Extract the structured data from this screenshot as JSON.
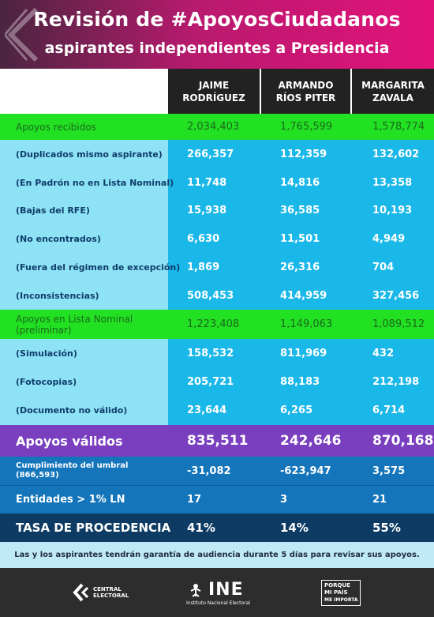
{
  "header": {
    "title": "Revisión de #ApoyosCiudadanos",
    "subtitle": "aspirantes independientes a Presidencia"
  },
  "columns": [
    {
      "line1": "JAIME",
      "line2": "RODRÍGUEZ"
    },
    {
      "line1": "ARMANDO",
      "line2": "RÍOS PITER"
    },
    {
      "line1": "MARGARITA",
      "line2": "ZAVALA"
    }
  ],
  "rows": [
    {
      "label": "Apoyos recibidos",
      "values": [
        "2,034,403",
        "1,765,599",
        "1,578,774"
      ]
    },
    {
      "label": "(Duplicados mismo aspirante)",
      "values": [
        "266,357",
        "112,359",
        "132,602"
      ]
    },
    {
      "label": "(En Padrón no en Lista Nominal)",
      "values": [
        "11,748",
        "14,816",
        "13,358"
      ]
    },
    {
      "label": "(Bajas del RFE)",
      "values": [
        "15,938",
        "36,585",
        "10,193"
      ]
    },
    {
      "label": "(No encontrados)",
      "values": [
        "6,630",
        "11,501",
        "4,949"
      ]
    },
    {
      "label": "(Fuera del régimen de excepción)",
      "values": [
        "1,869",
        "26,316",
        "704"
      ]
    },
    {
      "label": "(Inconsistencias)",
      "values": [
        "508,453",
        "414,959",
        "327,456"
      ]
    },
    {
      "label_line1": "Apoyos en Lista Nominal",
      "label_line2": "(preliminar)",
      "values": [
        "1,223,408",
        "1,149,063",
        "1,089,512"
      ]
    },
    {
      "label": "(Simulación)",
      "values": [
        "158,532",
        "811,969",
        "432"
      ]
    },
    {
      "label": "(Fotocopias)",
      "values": [
        "205,721",
        "88,183",
        "212,198"
      ]
    },
    {
      "label": "(Documento no válido)",
      "values": [
        "23,644",
        "6,265",
        "6,714"
      ]
    },
    {
      "label": "Apoyos válidos",
      "values": [
        "835,511",
        "242,646",
        "870,168"
      ]
    },
    {
      "label_line1": "Cumplimiento del umbral",
      "label_line2": "(866,593)",
      "values": [
        "-31,082",
        "-623,947",
        "3,575"
      ]
    },
    {
      "label": "Entidades > 1% LN",
      "values": [
        "17",
        "3",
        "21"
      ]
    },
    {
      "label": "TASA DE PROCEDENCIA",
      "values": [
        "41%",
        "14%",
        "55%"
      ]
    }
  ],
  "note": "Las y los aspirantes tendrán garantía de audiencia durante 5 días para revisar sus apoyos.",
  "footer": {
    "central_line1": "CENTRAL",
    "central_line2": "ELECTORAL",
    "ine_word": "INE",
    "ine_sub": "Instituto Nacional Electoral",
    "pmp_line1": "PORQUE",
    "pmp_line2": "MI PAÍS",
    "pmp_line3": "ME IMPORTA"
  },
  "colors": {
    "header_pink": "#e2127a",
    "green_row": "#22e022",
    "blue_light": "#8ee2f5",
    "blue_mid": "#1ab7e9",
    "purple_row": "#7a3fbf",
    "navy_row": "#1475bb",
    "dark_row": "#0d3b63"
  }
}
